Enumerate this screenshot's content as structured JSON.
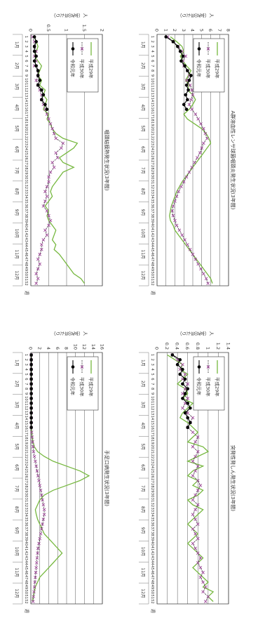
{
  "page": {
    "week_unit": "週",
    "per_unit": "人（定点当たり）"
  },
  "x_weeks": [
    1,
    2,
    3,
    4,
    5,
    6,
    7,
    8,
    9,
    10,
    11,
    12,
    13,
    14,
    15,
    16,
    17,
    18,
    19,
    20,
    21,
    22,
    23,
    24,
    25,
    26,
    27,
    28,
    29,
    30,
    31,
    32,
    33,
    34,
    35,
    36,
    37,
    38,
    39,
    40,
    41,
    42,
    43,
    44,
    45,
    46,
    47,
    48,
    49,
    50,
    51,
    52
  ],
  "months": [
    "1月",
    "2月",
    "3月",
    "4月",
    "5月",
    "6月",
    "7月",
    "8月",
    "9月",
    "10月",
    "11月",
    "12月"
  ],
  "legend": [
    "平成29年",
    "平成30年",
    "令和元年"
  ],
  "colors": {
    "h29": "#76b83f",
    "h30": "#333333",
    "h30_marker": "#a0489a",
    "r1": "#000000",
    "grid": "#555555"
  },
  "chart_data": [
    {
      "type": "line",
      "title": "咽頭結膜熱発生状況(3年間)",
      "ylabel": "人（定点当たり）",
      "ylim": [
        0,
        2
      ],
      "yticks": [
        "0",
        "0.5",
        "1",
        "1.5",
        "2"
      ],
      "x": "weeks 1-52",
      "series": [
        {
          "name": "平成29年",
          "values": [
            0.1,
            0.15,
            0.2,
            0.15,
            0.1,
            0.2,
            0.3,
            0.25,
            0.2,
            0.3,
            0.25,
            0.4,
            0.35,
            0.45,
            0.4,
            0.35,
            0.5,
            0.45,
            0.55,
            0.6,
            0.7,
            0.9,
            1.3,
            1.2,
            1.0,
            0.8,
            0.9,
            1.2,
            0.9,
            0.8,
            0.7,
            0.6,
            0.55,
            0.6,
            0.5,
            0.4,
            0.5,
            0.45,
            0.5,
            0.6,
            0.7,
            0.65,
            0.6,
            0.7,
            0.65,
            0.8,
            0.9,
            1.0,
            1.1,
            1.2,
            1.4,
            1.5
          ]
        },
        {
          "name": "平成30年",
          "values": [
            0.05,
            0.1,
            0.1,
            0.15,
            0.1,
            0.15,
            0.1,
            0.2,
            0.2,
            0.15,
            0.2,
            0.25,
            0.3,
            0.3,
            0.35,
            0.4,
            0.45,
            0.5,
            0.55,
            0.6,
            0.65,
            0.7,
            0.9,
            0.85,
            0.7,
            0.75,
            0.6,
            0.65,
            0.55,
            0.5,
            0.5,
            0.45,
            0.4,
            0.45,
            0.4,
            0.35,
            0.45,
            0.5,
            0.55,
            0.5,
            0.4,
            0.45,
            0.35,
            0.3,
            0.3,
            0.25,
            0.2,
            0.25,
            0.2,
            0.15,
            0.2,
            0.15
          ]
        },
        {
          "name": "令和元年",
          "values": [
            0.1,
            0.15,
            0.1,
            0.1,
            0.15,
            0.1,
            0.15,
            0.2,
            0.2,
            0.25,
            0.2,
            0.3,
            0.35,
            0.3,
            0.4,
            0.45,
            null,
            null,
            null,
            null,
            null,
            null,
            null,
            null,
            null,
            null,
            null,
            null,
            null,
            null,
            null,
            null,
            null,
            null,
            null,
            null,
            null,
            null,
            null,
            null,
            null,
            null,
            null,
            null,
            null,
            null,
            null,
            null,
            null,
            null,
            null,
            null
          ]
        }
      ]
    },
    {
      "type": "line",
      "title": "手足口病発生状況(3年間)",
      "ylabel": "人（定点当たり）",
      "ylim": [
        0,
        16
      ],
      "yticks": [
        "0",
        "2",
        "4",
        "6",
        "8",
        "10",
        "12",
        "14",
        "16"
      ],
      "x": "weeks 1-52",
      "series": [
        {
          "name": "平成29年",
          "values": [
            0.1,
            0.1,
            0.1,
            0.1,
            0.1,
            0.1,
            0.1,
            0.1,
            0.1,
            0.1,
            0.1,
            0.1,
            0.1,
            0.1,
            0.1,
            0.1,
            0.2,
            0.3,
            0.5,
            0.8,
            1.5,
            3,
            5,
            8,
            11,
            13,
            11,
            8,
            5,
            3,
            2,
            1.5,
            1,
            1.2,
            1.5,
            2,
            2.5,
            3,
            4,
            5,
            6,
            7,
            6,
            5,
            4,
            3,
            2,
            1.5,
            1,
            0.8,
            0.5,
            0.4
          ]
        },
        {
          "name": "平成30年",
          "values": [
            0.1,
            0.1,
            0.1,
            0.1,
            0.1,
            0.1,
            0.1,
            0.1,
            0.1,
            0.1,
            0.1,
            0.1,
            0.1,
            0.1,
            0.1,
            0.1,
            0.2,
            0.3,
            0.4,
            0.5,
            0.6,
            0.8,
            1.0,
            1.2,
            1.4,
            1.6,
            1.8,
            2.0,
            2.2,
            2.4,
            2.6,
            2.8,
            3.0,
            3.0,
            2.8,
            2.6,
            2.4,
            2.2,
            2.0,
            1.8,
            1.6,
            1.5,
            1.4,
            1.3,
            1.2,
            1.1,
            1.0,
            0.9,
            0.8,
            0.7,
            0.6,
            0.5
          ]
        },
        {
          "name": "令和元年",
          "values": [
            0.1,
            0.1,
            0.1,
            0.1,
            0.1,
            0.1,
            0.1,
            0.1,
            0.1,
            0.1,
            0.1,
            0.1,
            0.1,
            0.1,
            0.1,
            0.1,
            null,
            null,
            null,
            null,
            null,
            null,
            null,
            null,
            null,
            null,
            null,
            null,
            null,
            null,
            null,
            null,
            null,
            null,
            null,
            null,
            null,
            null,
            null,
            null,
            null,
            null,
            null,
            null,
            null,
            null,
            null,
            null,
            null,
            null,
            null,
            null
          ]
        }
      ]
    },
    {
      "type": "line",
      "title": "A群溶血性レンサ球菌咽頭炎発生状況(3年間)",
      "ylabel": "人（定点当たり）",
      "ylim": [
        0,
        8
      ],
      "yticks": [
        "0",
        "1",
        "2",
        "3",
        "4",
        "5",
        "6",
        "7",
        "8"
      ],
      "x": "weeks 1-52",
      "series": [
        {
          "name": "平成29年",
          "values": [
            1.5,
            2.2,
            2.8,
            3.0,
            2.6,
            2.9,
            3.3,
            3.8,
            3.5,
            3.2,
            3.6,
            3.4,
            4.0,
            4.3,
            4.0,
            3.6,
            3.0,
            3.4,
            4.2,
            5.0,
            5.5,
            5.8,
            6.0,
            5.6,
            5.2,
            4.8,
            4.4,
            4.0,
            3.6,
            3.2,
            2.8,
            2.5,
            2.2,
            2.0,
            1.8,
            1.6,
            1.5,
            1.4,
            1.5,
            1.8,
            2.0,
            2.4,
            2.8,
            3.2,
            3.6,
            4.0,
            4.4,
            4.8,
            5.2,
            5.6,
            6.0,
            6.2
          ]
        },
        {
          "name": "平成30年",
          "values": [
            1.2,
            1.8,
            2.4,
            2.8,
            3.2,
            2.9,
            3.0,
            3.4,
            3.6,
            3.3,
            3.7,
            3.9,
            4.0,
            3.8,
            3.6,
            3.9,
            4.3,
            4.6,
            4.9,
            5.2,
            5.4,
            5.6,
            5.2,
            5.0,
            4.8,
            4.5,
            4.2,
            3.9,
            3.6,
            3.3,
            3.0,
            2.7,
            2.4,
            2.2,
            2.0,
            1.8,
            1.7,
            1.8,
            2.0,
            2.2,
            2.5,
            2.8,
            3.1,
            3.4,
            3.7,
            4.0,
            4.3,
            4.6,
            4.9,
            5.2,
            5.5,
            5.7
          ]
        },
        {
          "name": "令和元年",
          "values": [
            1.0,
            1.8,
            2.3,
            2.6,
            2.9,
            2.7,
            3.1,
            3.4,
            3.8,
            3.6,
            3.3,
            3.5,
            3.2,
            3.4,
            3.0,
            3.3,
            null,
            null,
            null,
            null,
            null,
            null,
            null,
            null,
            null,
            null,
            null,
            null,
            null,
            null,
            null,
            null,
            null,
            null,
            null,
            null,
            null,
            null,
            null,
            null,
            null,
            null,
            null,
            null,
            null,
            null,
            null,
            null,
            null,
            null,
            null,
            null
          ]
        }
      ]
    },
    {
      "type": "line",
      "title": "突発性発しん発生状況(3年間)",
      "ylabel": "人（定点当たり）",
      "ylim": [
        0,
        1.4
      ],
      "yticks": [
        "0",
        "0.2",
        "0.4",
        "0.6",
        "0.8",
        "1",
        "1.2",
        "1.4"
      ],
      "x": "weeks 1-52",
      "series": [
        {
          "name": "平成29年",
          "values": [
            0.2,
            0.35,
            0.5,
            0.45,
            0.6,
            0.5,
            0.4,
            0.55,
            0.6,
            0.5,
            0.7,
            0.6,
            0.5,
            0.45,
            0.6,
            0.7,
            0.8,
            0.7,
            0.6,
            0.9,
            1.0,
            0.8,
            0.6,
            0.9,
            0.7,
            0.6,
            0.8,
            0.7,
            0.9,
            0.8,
            0.6,
            0.7,
            0.9,
            0.8,
            0.7,
            0.6,
            0.7,
            0.8,
            0.7,
            0.6,
            0.7,
            0.8,
            0.9,
            0.8,
            0.7,
            0.8,
            0.9,
            1.0,
            0.9,
            1.1,
            1.0,
            1.1
          ]
        },
        {
          "name": "平成30年",
          "values": [
            0.3,
            0.4,
            0.5,
            0.45,
            0.55,
            0.5,
            0.6,
            0.55,
            0.5,
            0.6,
            0.55,
            0.5,
            0.6,
            0.7,
            0.65,
            0.6,
            0.7,
            0.8,
            0.75,
            0.7,
            0.8,
            0.75,
            0.7,
            0.8,
            0.75,
            0.7,
            0.8,
            0.85,
            0.8,
            0.75,
            0.7,
            0.8,
            0.75,
            0.7,
            0.75,
            0.8,
            0.7,
            0.75,
            0.8,
            0.7,
            0.75,
            0.8,
            0.85,
            0.8,
            0.85,
            0.9,
            0.85,
            0.9,
            0.95,
            0.9,
            1.0,
            0.95
          ]
        },
        {
          "name": "令和元年",
          "values": [
            0.3,
            0.45,
            0.4,
            0.5,
            0.45,
            0.55,
            0.5,
            0.6,
            0.55,
            0.5,
            0.6,
            0.65,
            0.55,
            0.6,
            0.65,
            0.6,
            null,
            null,
            null,
            null,
            null,
            null,
            null,
            null,
            null,
            null,
            null,
            null,
            null,
            null,
            null,
            null,
            null,
            null,
            null,
            null,
            null,
            null,
            null,
            null,
            null,
            null,
            null,
            null,
            null,
            null,
            null,
            null,
            null,
            null,
            null,
            null
          ]
        }
      ]
    }
  ]
}
